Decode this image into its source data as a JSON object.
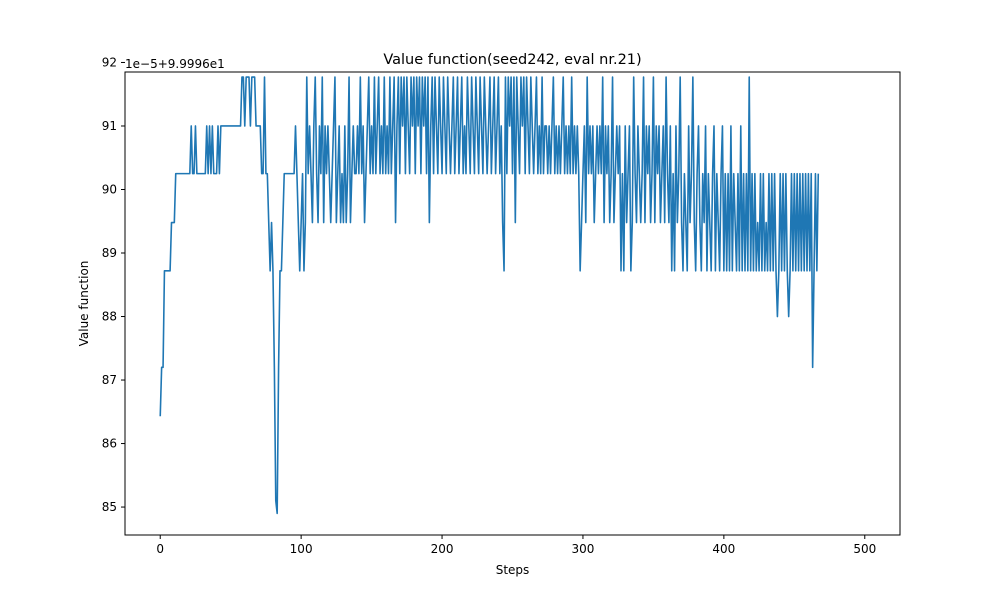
{
  "chart_data": {
    "type": "line",
    "title": "Value function(seed242, eval nr.21)",
    "xlabel": "Steps",
    "ylabel": "Value function",
    "y_offset_label": "1e−5+9.9996e1",
    "xlim": [
      -25,
      525
    ],
    "ylim": [
      84.56,
      91.85
    ],
    "x_ticks": [
      0,
      100,
      200,
      300,
      400,
      500
    ],
    "x_tick_labels": [
      "0",
      "100",
      "200",
      "300",
      "400",
      "500"
    ],
    "y_ticks": [
      85,
      86,
      87,
      88,
      89,
      90,
      91,
      92
    ],
    "y_tick_labels": [
      "85",
      "86",
      "87",
      "88",
      "89",
      "90",
      "91",
      "92"
    ],
    "grid": false,
    "line_color": "#1f77b4",
    "series": [
      {
        "name": "Value function",
        "x_start": 0,
        "x_step": 1,
        "values": [
          86.43,
          87.2,
          87.2,
          88.72,
          88.72,
          88.72,
          88.72,
          88.72,
          89.48,
          89.48,
          89.48,
          90.25,
          90.25,
          90.25,
          90.25,
          90.25,
          90.25,
          90.25,
          90.25,
          90.25,
          90.25,
          90.25,
          91.0,
          90.25,
          90.25,
          91.0,
          90.25,
          90.25,
          90.25,
          90.25,
          90.25,
          90.25,
          90.25,
          91.0,
          90.25,
          91.0,
          90.25,
          91.0,
          90.25,
          90.25,
          90.25,
          91.0,
          90.25,
          91.0,
          91.0,
          91.0,
          91.0,
          91.0,
          91.0,
          91.0,
          91.0,
          91.0,
          91.0,
          91.0,
          91.0,
          91.0,
          91.0,
          91.0,
          91.77,
          91.77,
          91.0,
          91.77,
          91.77,
          91.77,
          91.0,
          91.77,
          91.77,
          91.77,
          91.0,
          91.0,
          91.0,
          91.0,
          90.25,
          90.25,
          91.77,
          90.25,
          90.25,
          89.48,
          88.72,
          89.48,
          88.72,
          87.2,
          85.1,
          84.9,
          87.2,
          88.72,
          88.72,
          89.48,
          90.25,
          90.25,
          90.25,
          90.25,
          90.25,
          90.25,
          90.25,
          90.25,
          91.0,
          90.25,
          89.48,
          88.72,
          89.48,
          90.25,
          88.72,
          89.48,
          91.77,
          90.25,
          91.0,
          90.25,
          89.48,
          91.0,
          91.77,
          90.25,
          89.48,
          91.0,
          90.25,
          91.77,
          89.48,
          91.0,
          90.25,
          91.0,
          90.25,
          89.48,
          90.25,
          91.0,
          91.77,
          89.48,
          90.25,
          91.0,
          89.48,
          90.25,
          89.48,
          91.0,
          89.48,
          90.25,
          91.77,
          89.48,
          90.25,
          91.0,
          90.25,
          90.25,
          91.0,
          90.25,
          91.77,
          90.25,
          91.0,
          89.48,
          90.25,
          91.0,
          91.77,
          90.25,
          91.0,
          90.25,
          91.77,
          90.25,
          91.0,
          91.77,
          90.25,
          91.0,
          90.25,
          91.77,
          90.25,
          91.0,
          90.25,
          91.77,
          90.25,
          91.0,
          91.77,
          89.48,
          91.0,
          91.77,
          90.25,
          91.77,
          91.0,
          91.77,
          90.25,
          91.77,
          91.0,
          90.25,
          91.77,
          91.0,
          91.77,
          90.25,
          91.77,
          91.0,
          91.77,
          90.25,
          91.77,
          91.0,
          91.77,
          90.25,
          91.77,
          89.48,
          91.0,
          91.77,
          90.25,
          91.77,
          91.0,
          90.25,
          91.77,
          91.0,
          90.25,
          91.77,
          91.0,
          90.25,
          91.77,
          91.0,
          90.25,
          91.0,
          91.77,
          90.25,
          91.0,
          91.77,
          90.25,
          91.0,
          91.77,
          90.25,
          91.0,
          90.25,
          91.77,
          91.0,
          90.25,
          91.77,
          91.0,
          90.25,
          91.77,
          91.0,
          90.25,
          91.77,
          91.0,
          90.25,
          91.77,
          91.0,
          90.25,
          91.0,
          91.77,
          90.25,
          91.0,
          91.77,
          90.25,
          91.0,
          91.77,
          90.25,
          91.0,
          89.48,
          88.72,
          91.77,
          90.25,
          91.77,
          91.0,
          91.77,
          90.25,
          91.77,
          89.48,
          91.77,
          91.0,
          90.25,
          91.77,
          91.0,
          91.77,
          90.25,
          91.77,
          91.0,
          90.25,
          91.77,
          91.0,
          90.25,
          91.0,
          91.77,
          90.25,
          91.0,
          90.25,
          91.77,
          90.25,
          91.0,
          91.0,
          90.25,
          91.0,
          90.25,
          91.0,
          91.77,
          90.25,
          91.0,
          90.25,
          91.0,
          90.25,
          91.0,
          91.77,
          90.25,
          91.0,
          90.25,
          91.0,
          90.25,
          91.77,
          90.25,
          91.0,
          90.25,
          91.0,
          90.25,
          88.72,
          89.48,
          90.25,
          91.0,
          89.48,
          91.77,
          90.25,
          91.0,
          90.25,
          91.0,
          89.48,
          90.25,
          91.0,
          90.25,
          91.0,
          90.25,
          91.77,
          89.48,
          91.0,
          90.25,
          91.0,
          89.48,
          90.25,
          91.77,
          89.48,
          90.25,
          91.0,
          90.25,
          91.0,
          88.72,
          90.25,
          88.72,
          91.0,
          89.48,
          90.25,
          91.0,
          88.72,
          89.48,
          91.77,
          90.25,
          89.48,
          91.0,
          90.25,
          89.48,
          90.25,
          91.77,
          89.48,
          91.0,
          90.25,
          91.0,
          89.48,
          90.25,
          91.77,
          89.48,
          91.0,
          90.25,
          91.0,
          89.48,
          90.25,
          91.0,
          89.48,
          91.77,
          90.25,
          89.48,
          91.0,
          88.72,
          90.25,
          88.72,
          91.0,
          89.48,
          90.25,
          91.77,
          89.48,
          88.72,
          90.25,
          89.48,
          88.72,
          91.0,
          89.48,
          90.25,
          91.77,
          89.48,
          88.72,
          90.25,
          91.0,
          89.48,
          88.72,
          90.25,
          89.48,
          91.0,
          88.72,
          90.25,
          89.48,
          88.72,
          90.25,
          91.0,
          88.72,
          90.25,
          89.48,
          88.72,
          90.25,
          91.0,
          88.72,
          90.25,
          88.72,
          90.25,
          88.72,
          91.0,
          88.72,
          90.25,
          89.48,
          88.72,
          90.25,
          88.72,
          91.0,
          88.72,
          90.25,
          88.72,
          90.25,
          88.72,
          91.77,
          88.72,
          90.25,
          88.72,
          90.25,
          88.72,
          89.48,
          88.72,
          90.25,
          88.72,
          90.25,
          88.72,
          89.48,
          88.72,
          90.25,
          88.72,
          90.25,
          88.72,
          90.25,
          88.72,
          88.0,
          88.72,
          90.25,
          88.72,
          90.25,
          88.72,
          90.25,
          88.72,
          88.0,
          88.72,
          90.25,
          88.72,
          90.25,
          88.72,
          90.25,
          88.72,
          90.25,
          88.72,
          90.25,
          88.72,
          90.25,
          88.72,
          90.25,
          88.72,
          90.25,
          87.2,
          88.72,
          90.25,
          88.72,
          90.25
        ]
      }
    ]
  }
}
